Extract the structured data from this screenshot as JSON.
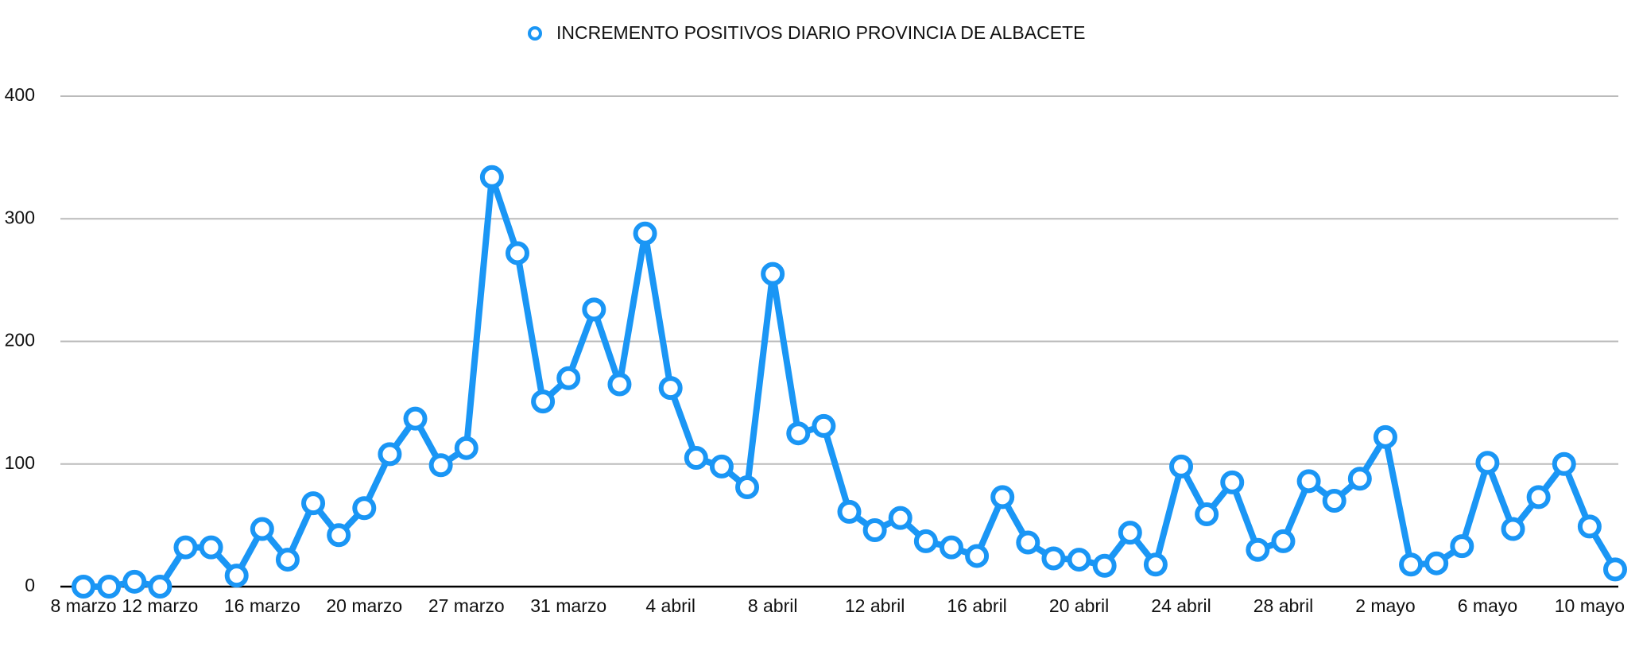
{
  "chart_data": {
    "type": "line",
    "categories": [
      "8 marzo",
      null,
      null,
      "12 marzo",
      null,
      null,
      null,
      "16 marzo",
      null,
      null,
      null,
      "20 marzo",
      null,
      null,
      null,
      "27 marzo",
      null,
      null,
      null,
      "31 marzo",
      null,
      null,
      null,
      "4 abril",
      null,
      null,
      null,
      "8 abril",
      null,
      null,
      null,
      "12 abril",
      null,
      null,
      null,
      "16 abril",
      null,
      null,
      null,
      "20 abril",
      null,
      null,
      null,
      "24 abril",
      null,
      null,
      null,
      "28 abril",
      null,
      null,
      null,
      "2 mayo",
      null,
      null,
      null,
      "6 mayo",
      null,
      null,
      null,
      "10 mayo",
      null
    ],
    "series": [
      {
        "name": "INCREMENTO POSITIVOS DIARIO PROVINCIA DE ALBACETE",
        "color": "#1a96f5",
        "values": [
          0,
          0,
          4,
          0,
          32,
          32,
          9,
          47,
          22,
          68,
          42,
          64,
          108,
          137,
          99,
          113,
          334,
          272,
          151,
          170,
          226,
          165,
          288,
          162,
          105,
          98,
          81,
          255,
          125,
          131,
          61,
          46,
          56,
          37,
          32,
          25,
          73,
          36,
          23,
          22,
          17,
          44,
          18,
          98,
          59,
          85,
          30,
          37,
          86,
          70,
          88,
          122,
          18,
          19,
          33,
          101,
          47,
          73,
          100,
          49,
          14
        ]
      }
    ],
    "ylim": [
      0,
      400
    ],
    "yticks": [
      0,
      100,
      200,
      300,
      400
    ],
    "grid": true,
    "legend": "top"
  }
}
